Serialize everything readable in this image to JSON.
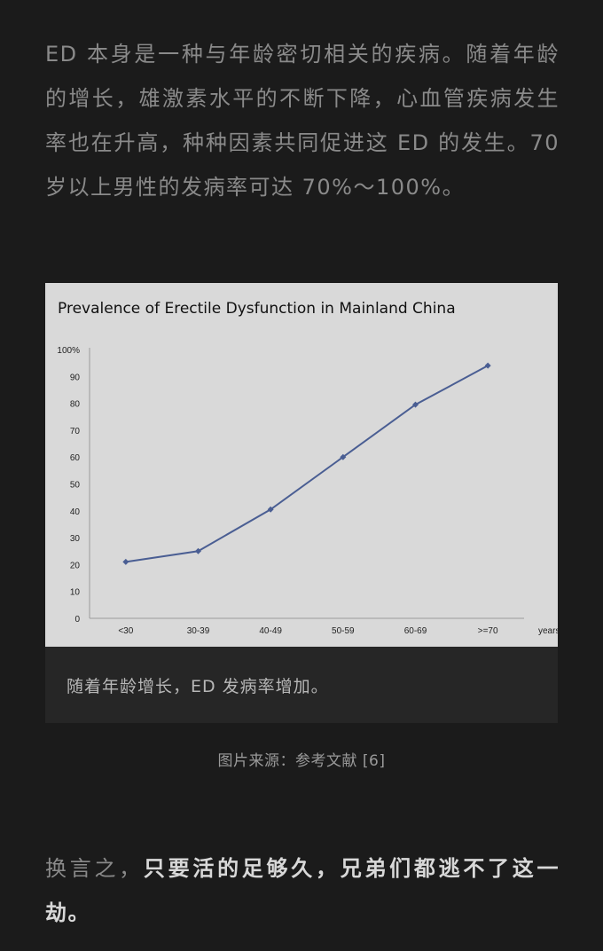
{
  "article": {
    "paragraph_1": "ED 本身是一种与年龄密切相关的疾病。随着年龄的增长，雄激素水平的不断下降，心血管疾病发生率也在升高，种种因素共同促进这 ED 的发生。70 岁以上男性的发病率可达 70%～100%。",
    "paragraph_2_prefix": "换言之，",
    "paragraph_2_bold": "只要活的足够久，兄弟们都逃不了这一劫。"
  },
  "figure": {
    "caption": "随着年龄增长，ED 发病率增加。",
    "source": "图片来源：参考文献 [6]"
  },
  "colors": {
    "background": "#1b1b1b",
    "chart_background": "#d9d9d9",
    "series_line": "#4a5e93"
  },
  "chart_data": {
    "type": "line",
    "title": "Prevalence of Erectile Dysfunction in Mainland China",
    "categories": [
      "<30",
      "30-39",
      "40-49",
      "50-59",
      "60-69",
      ">=70"
    ],
    "values": [
      21,
      25,
      40.5,
      60,
      79.5,
      94
    ],
    "xlabel": "years old",
    "ylabel": "",
    "ylim": [
      0,
      100
    ],
    "y_ticks": [
      "0",
      "10",
      "20",
      "30",
      "40",
      "50",
      "60",
      "70",
      "80",
      "90",
      "100"
    ],
    "y_unit": "%",
    "grid": false,
    "legend": "none"
  }
}
